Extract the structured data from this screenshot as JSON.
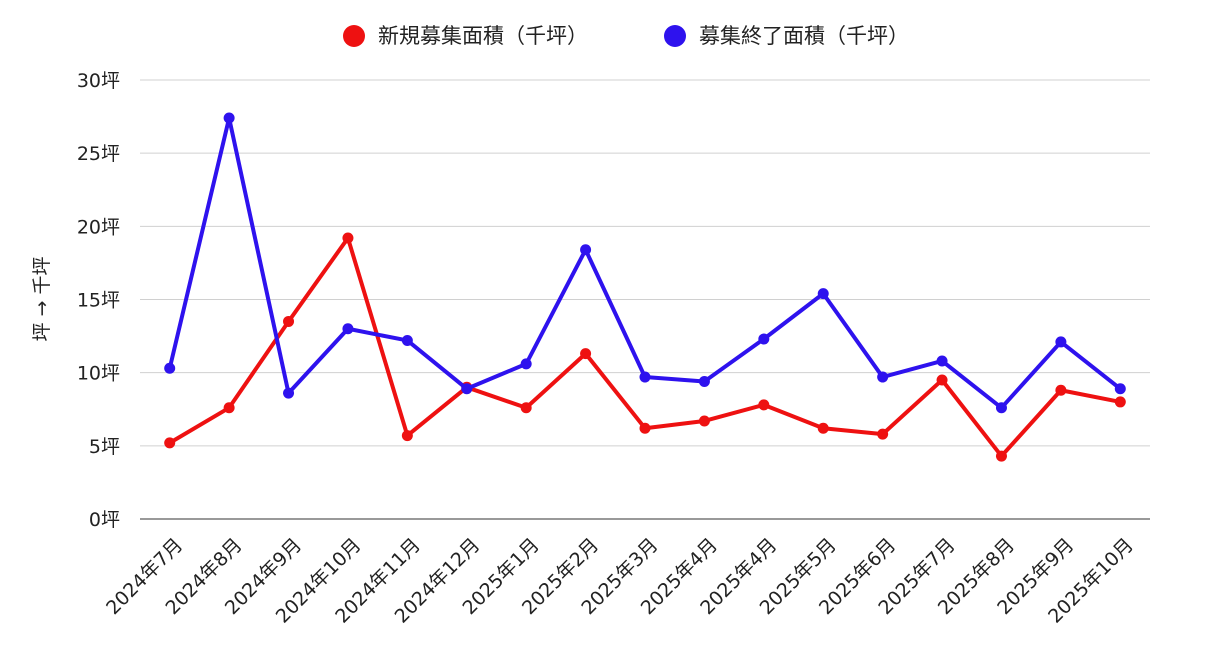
{
  "chart_data": {
    "type": "line",
    "categories": [
      "2024年7月",
      "2024年8月",
      "2024年9月",
      "2024年10月",
      "2024年11月",
      "2024年12月",
      "2025年1月",
      "2025年2月",
      "2025年3月",
      "2025年4月",
      "2025年4月",
      "2025年5月",
      "2025年6月",
      "2025年7月",
      "2025年8月",
      "2025年9月",
      "2025年10月"
    ],
    "series": [
      {
        "name": "新規募集面積（千坪）",
        "color": "#ee1111",
        "values": [
          5.2,
          7.6,
          13.5,
          19.2,
          5.7,
          9.0,
          7.6,
          11.3,
          6.2,
          6.7,
          7.8,
          6.2,
          5.8,
          9.5,
          4.3,
          8.8,
          8.0
        ]
      },
      {
        "name": "募集終了面積（千坪）",
        "color": "#2e12ee",
        "values": [
          10.3,
          27.4,
          8.6,
          13.0,
          12.2,
          8.9,
          10.6,
          18.4,
          9.7,
          9.4,
          12.3,
          15.4,
          9.7,
          10.8,
          7.6,
          12.1,
          8.9
        ]
      }
    ],
    "ylim": [
      0,
      30
    ],
    "yticks": [
      0,
      5,
      10,
      15,
      20,
      25,
      30
    ],
    "ytick_labels": [
      "0坪",
      "5坪",
      "10坪",
      "15坪",
      "20坪",
      "25坪",
      "30坪"
    ],
    "ylabel": "坪 → 千坪",
    "xlabel": "",
    "title": "",
    "grid": true,
    "legend": "top-center"
  }
}
